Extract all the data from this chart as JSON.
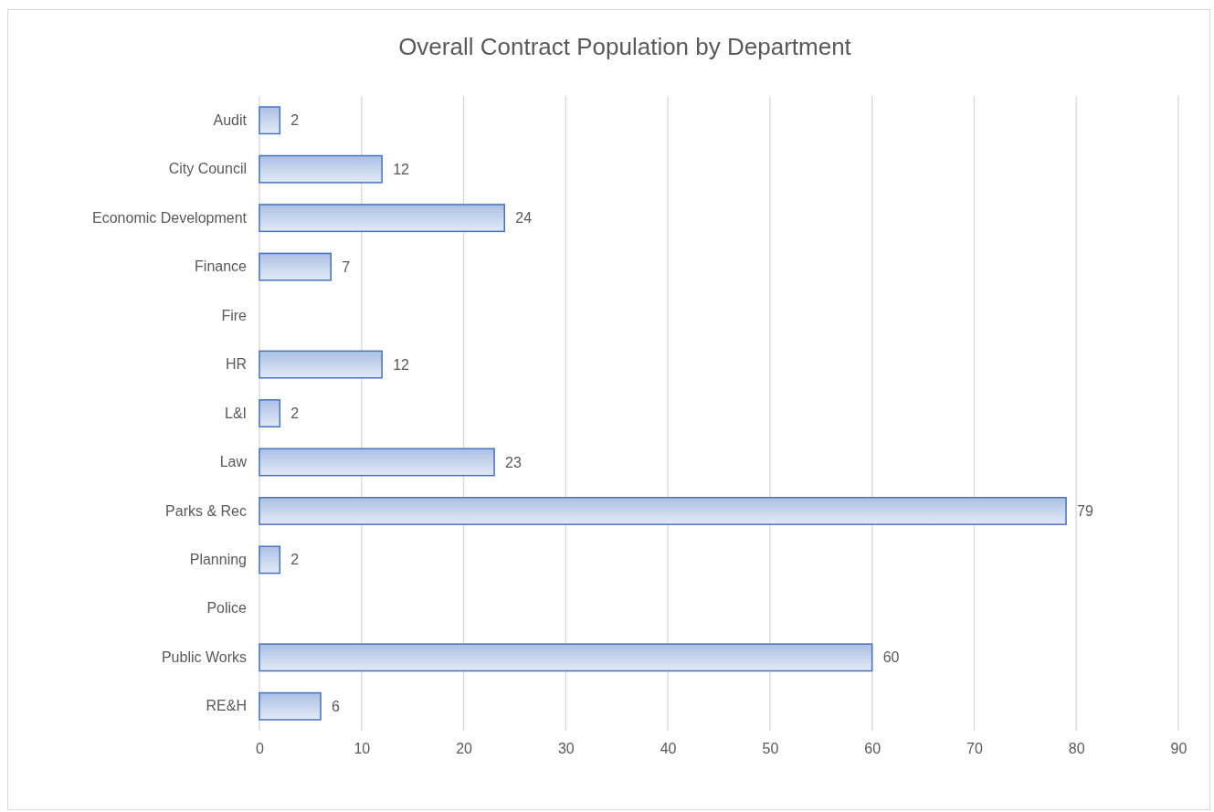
{
  "chart_data": {
    "type": "bar",
    "orientation": "horizontal",
    "title": "Overall Contract Population by Department",
    "categories": [
      "Audit",
      "City Council",
      "Economic Development",
      "Finance",
      "Fire",
      "HR",
      "L&I",
      "Law",
      "Parks & Rec",
      "Planning",
      "Police",
      "Public Works",
      "RE&H"
    ],
    "values": [
      2,
      12,
      24,
      7,
      null,
      12,
      2,
      23,
      79,
      2,
      null,
      60,
      6
    ],
    "color": "#4472c4",
    "xlim": [
      0,
      90
    ],
    "xticks": [
      0,
      10,
      20,
      30,
      40,
      50,
      60,
      70,
      80,
      90
    ],
    "grid": "x",
    "data_labels": true
  }
}
